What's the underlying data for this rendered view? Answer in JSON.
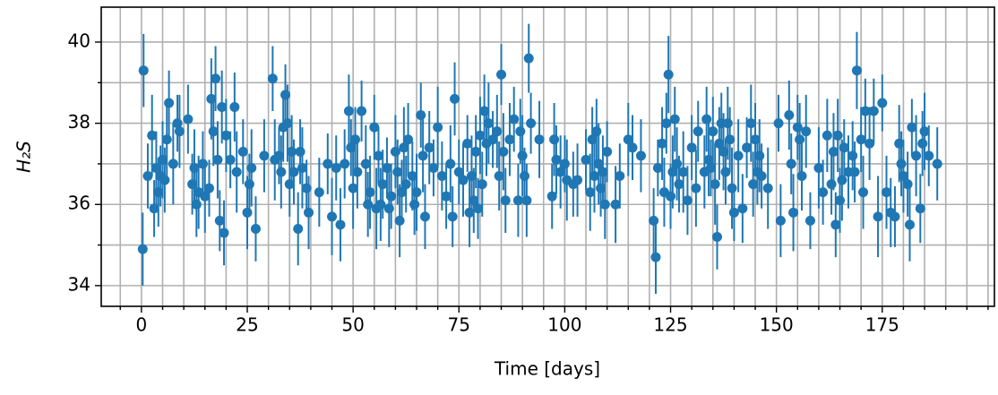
{
  "chart_data": {
    "type": "errorbar",
    "xlabel": "Time [days]",
    "ylabel": "H₂S",
    "color": "#1f77b4",
    "grid": true,
    "xlim": [
      -9.5,
      201.5
    ],
    "ylim": [
      33.49,
      40.86
    ],
    "xticks": [
      0,
      25,
      50,
      75,
      100,
      125,
      150,
      175
    ],
    "xminorticks": [
      -5,
      5,
      10,
      15,
      20,
      30,
      35,
      40,
      45,
      55,
      60,
      65,
      70,
      80,
      85,
      90,
      95,
      105,
      110,
      115,
      120,
      130,
      135,
      140,
      145,
      155,
      160,
      165,
      170,
      180,
      185,
      190,
      195,
      200
    ],
    "yticks": [
      34,
      36,
      38,
      40
    ],
    "yminorticks": [
      35,
      37,
      39
    ],
    "series": [
      {
        "x": [
          0.3,
          0.5,
          1.5,
          2.5,
          3,
          3.5,
          4,
          4.5,
          5,
          5.5,
          6,
          6.5,
          7.5,
          8.5,
          9,
          11,
          12,
          12.5,
          13,
          13.5,
          14.5,
          15,
          16,
          16.5,
          17,
          17.5,
          18,
          18.5,
          19,
          19.5,
          20,
          21,
          22,
          22.5,
          24,
          25,
          25.5,
          26,
          27,
          29,
          31,
          31.5,
          32.5,
          33,
          33.5,
          34,
          34.5,
          35,
          35.5,
          36,
          37,
          37.5,
          38,
          39,
          39.5,
          42,
          44,
          45,
          46,
          47,
          48,
          49,
          49.5,
          50,
          50.5,
          51,
          52,
          53,
          53.5,
          54,
          55,
          55.5,
          56,
          56.5,
          57,
          58,
          58.5,
          59,
          60,
          60.5,
          61,
          61.5,
          62,
          62.5,
          63,
          64,
          64.5,
          65,
          66,
          66.5,
          67,
          68,
          69,
          70,
          71,
          72,
          73,
          73.5,
          74,
          75,
          76,
          77,
          77.5,
          78,
          78.5,
          79,
          79.5,
          80,
          80.5,
          81,
          81.5,
          82,
          83,
          84,
          84.5,
          85,
          85.5,
          86,
          87,
          88,
          89,
          89.5,
          90,
          90.5,
          91,
          91.5,
          92,
          94,
          97,
          97.5,
          98,
          99,
          100,
          100.5,
          102,
          103,
          105,
          106,
          106.5,
          107,
          107.5,
          108,
          108.5,
          109,
          109.5,
          110,
          112,
          113,
          115,
          116,
          118,
          121,
          121.5,
          122,
          123,
          123.5,
          124,
          124.5,
          125,
          125.5,
          126,
          126.5,
          127,
          128,
          129,
          130,
          131,
          131.5,
          133,
          133.5,
          134,
          134.5,
          135,
          135.5,
          136,
          136.5,
          137,
          137.5,
          138,
          138.5,
          139,
          139.5,
          140,
          141,
          142,
          143,
          144,
          144.5,
          145,
          145.5,
          146,
          146.5,
          148,
          150.5,
          151,
          153,
          153.5,
          154,
          155,
          155.5,
          156,
          157,
          158,
          160,
          161,
          162,
          163,
          163.5,
          164,
          164.5,
          165,
          165.5,
          166,
          167,
          168,
          168.5,
          169,
          170,
          170.5,
          171,
          172,
          173,
          174,
          175,
          176,
          177,
          178,
          179,
          179.5,
          180,
          181,
          181.5,
          182,
          183,
          184,
          184.5,
          185,
          186,
          188
        ],
        "values": [
          34.9,
          39.3,
          36.7,
          37.7,
          35.9,
          36.9,
          36.3,
          36.7,
          37.1,
          36.6,
          37.6,
          38.5,
          37.0,
          38.0,
          37.8,
          38.1,
          36.5,
          36.9,
          36.0,
          36.3,
          37.0,
          36.2,
          36.4,
          38.6,
          37.8,
          39.1,
          37.1,
          35.6,
          38.4,
          35.3,
          37.7,
          37.1,
          38.4,
          36.8,
          37.3,
          35.8,
          36.5,
          36.9,
          35.4,
          37.2,
          39.1,
          37.1,
          37.2,
          36.8,
          37.9,
          38.7,
          38.0,
          36.5,
          37.3,
          36.8,
          35.4,
          37.3,
          36.9,
          36.4,
          35.8,
          36.3,
          37.0,
          35.7,
          36.9,
          35.5,
          37.0,
          38.3,
          37.4,
          36.4,
          37.6,
          36.8,
          38.3,
          37.0,
          36.0,
          36.3,
          37.9,
          35.9,
          37.2,
          36.0,
          36.5,
          36.9,
          35.9,
          36.2,
          37.3,
          36.8,
          35.6,
          36.3,
          37.4,
          36.5,
          37.6,
          36.7,
          36.0,
          36.3,
          38.2,
          37.2,
          35.7,
          37.4,
          36.9,
          37.9,
          36.7,
          36.2,
          37.0,
          35.7,
          38.6,
          36.8,
          36.6,
          37.5,
          35.8,
          36.7,
          36.1,
          37.3,
          35.9,
          37.7,
          36.5,
          38.3,
          37.5,
          38.0,
          37.6,
          37.8,
          36.7,
          39.2,
          37.3,
          36.1,
          37.6,
          38.1,
          36.1,
          37.8,
          37.2,
          36.7,
          36.1,
          39.6,
          38.0,
          37.6,
          36.2,
          37.6,
          37.1,
          36.8,
          37.0,
          36.6,
          36.5,
          36.6,
          37.1,
          36.3,
          37.6,
          36.7,
          37.8,
          37.0,
          36.4,
          36.8,
          36.0,
          37.3,
          36.0,
          36.7,
          37.6,
          37.4,
          37.2,
          35.6,
          34.7,
          36.9,
          37.5,
          36.3,
          38.0,
          39.2,
          36.2,
          36.8,
          38.1,
          37.0,
          36.5,
          36.8,
          36.1,
          37.4,
          36.4,
          37.8,
          36.8,
          38.1,
          37.1,
          36.9,
          37.8,
          36.5,
          35.2,
          37.5,
          38.0,
          37.3,
          36.8,
          38.0,
          37.6,
          36.4,
          35.8,
          37.2,
          35.9,
          37.4,
          38.0,
          36.5,
          37.6,
          36.8,
          37.2,
          36.7,
          36.4,
          38.0,
          35.6,
          38.2,
          37.0,
          35.8,
          37.9,
          37.6,
          36.7,
          37.8,
          35.6,
          36.9,
          36.3,
          37.7,
          36.5,
          37.3,
          35.5,
          37.7,
          36.1,
          36.6,
          37.4,
          36.8,
          37.2,
          36.8,
          39.3,
          37.6,
          36.3,
          38.3,
          37.5,
          38.3,
          35.7,
          38.5,
          36.3,
          35.8,
          35.7,
          37.5,
          37.0,
          36.7,
          36.5,
          35.5,
          37.9,
          37.2,
          35.9,
          37.5,
          37.8,
          37.2,
          37.0
        ],
        "errors": [
          0.9,
          0.9,
          0.8,
          1.0,
          0.7,
          0.9,
          0.85,
          0.75,
          0.95,
          0.8,
          0.9,
          0.8,
          1.0,
          0.7,
          0.9,
          0.85,
          0.75,
          0.95,
          0.8,
          0.9,
          0.8,
          0.9,
          0.7,
          1.0,
          0.85,
          0.8,
          0.95,
          0.75,
          0.9,
          0.8,
          0.9,
          0.7,
          0.85,
          1.0,
          0.8,
          0.9,
          0.75,
          0.95,
          0.8,
          0.9,
          0.8,
          1.0,
          0.7,
          0.9,
          0.85,
          0.75,
          0.95,
          0.8,
          0.9,
          0.8,
          0.9,
          0.8,
          1.0,
          0.7,
          0.9,
          0.85,
          0.75,
          0.95,
          0.8,
          0.9,
          0.85,
          0.9,
          0.7,
          1.0,
          0.8,
          0.9,
          0.75,
          0.95,
          0.8,
          0.9,
          0.8,
          1.0,
          0.7,
          0.9,
          0.85,
          0.75,
          0.95,
          0.8,
          0.9,
          0.8,
          0.9,
          0.8,
          1.0,
          0.7,
          0.9,
          0.85,
          0.75,
          0.95,
          0.8,
          0.9,
          0.8,
          0.9,
          0.7,
          1.0,
          0.85,
          0.8,
          0.95,
          0.75,
          0.9,
          0.8,
          0.9,
          0.7,
          0.85,
          1.0,
          0.8,
          0.9,
          0.75,
          0.95,
          0.8,
          0.9,
          0.8,
          1.0,
          0.7,
          0.9,
          0.85,
          0.75,
          0.95,
          0.8,
          0.9,
          0.8,
          0.9,
          0.8,
          1.0,
          0.7,
          0.9,
          0.85,
          0.75,
          0.95,
          0.8,
          0.9,
          0.85,
          0.9,
          0.7,
          1.0,
          0.8,
          0.9,
          0.75,
          0.95,
          0.8,
          0.9,
          0.8,
          1.0,
          0.7,
          0.9,
          0.85,
          0.75,
          0.95,
          0.8,
          0.9,
          0.8,
          0.9,
          0.8,
          0.9,
          0.7,
          0.9,
          0.85,
          0.75,
          0.95,
          0.8,
          0.9,
          0.8,
          0.9,
          0.7,
          1.0,
          0.85,
          0.8,
          0.95,
          0.75,
          0.9,
          0.8,
          0.9,
          0.7,
          0.85,
          1.0,
          0.8,
          0.9,
          0.75,
          0.95,
          0.8,
          0.9,
          0.8,
          1.0,
          0.7,
          0.9,
          0.85,
          0.75,
          0.95,
          0.8,
          0.9,
          0.8,
          0.9,
          0.8,
          1.0,
          0.7,
          0.9,
          0.85,
          0.75,
          0.95,
          0.8,
          0.9,
          0.85,
          0.9,
          0.7,
          1.0,
          0.8,
          0.9,
          0.75,
          0.95,
          0.8,
          0.9,
          0.8,
          1.0,
          0.7,
          0.9,
          0.85,
          0.75,
          0.95,
          0.8,
          0.9,
          0.8,
          0.9,
          0.8,
          1.0,
          0.7,
          0.9,
          0.85,
          0.75,
          0.95,
          0.8,
          0.9,
          0.8,
          0.9,
          0.7,
          1.0,
          0.85,
          0.8,
          0.95,
          0.75,
          0.9
        ]
      }
    ]
  }
}
